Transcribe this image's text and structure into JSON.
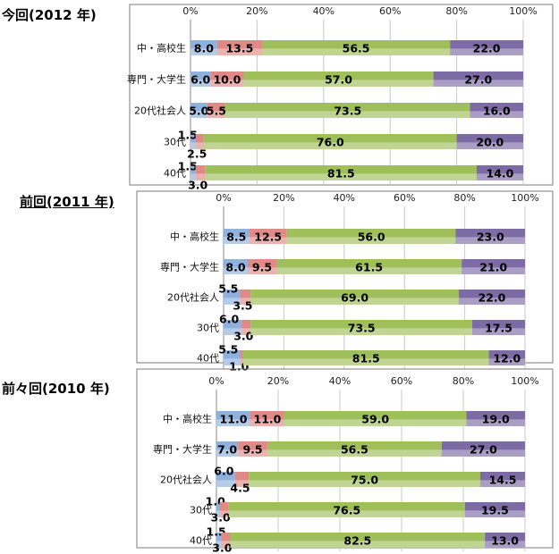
{
  "colors": {
    "seg1": "#8eb1dd",
    "seg2": "#df8a86",
    "seg3": "#9fbf5a",
    "seg4": "#7d6ba5",
    "frame": "#7a7a7a"
  },
  "chart_data": [
    {
      "type": "bar",
      "orientation": "horizontal-stacked-100",
      "title": "今回(2012 年)",
      "categories": [
        "中・高校生",
        "専門・大学生",
        "20代社会人",
        "30代",
        "40代"
      ],
      "xlim": [
        0,
        100
      ],
      "xticks": [
        "0%",
        "20%",
        "40%",
        "60%",
        "80%",
        "100%"
      ],
      "series": [
        {
          "values": [
            8.0,
            6.0,
            5.0,
            1.5,
            1.5
          ]
        },
        {
          "values": [
            13.5,
            10.0,
            5.5,
            2.5,
            3.0
          ]
        },
        {
          "values": [
            56.5,
            57.0,
            73.5,
            76.0,
            81.5
          ]
        },
        {
          "values": [
            22.0,
            27.0,
            16.0,
            20.0,
            14.0
          ]
        }
      ],
      "labels": [
        [
          "8.0",
          "13.5",
          "56.5",
          "22.0"
        ],
        [
          "6.0",
          "10.0",
          "57.0",
          "27.0"
        ],
        [
          "5.0",
          "5.5",
          "73.5",
          "16.0"
        ],
        [
          "1.5",
          "2.5",
          "76.0",
          "20.0"
        ],
        [
          "1.5",
          "3.0",
          "81.5",
          "14.0"
        ]
      ]
    },
    {
      "type": "bar",
      "orientation": "horizontal-stacked-100",
      "title": "前回(2011 年)",
      "categories": [
        "中・高校生",
        "専門・大学生",
        "20代社会人",
        "30代",
        "40代"
      ],
      "xlim": [
        0,
        100
      ],
      "xticks": [
        "0%",
        "20%",
        "40%",
        "60%",
        "80%",
        "100%"
      ],
      "series": [
        {
          "values": [
            8.5,
            8.0,
            5.5,
            6.0,
            5.5
          ]
        },
        {
          "values": [
            12.5,
            9.5,
            3.5,
            3.0,
            1.0
          ]
        },
        {
          "values": [
            56.0,
            61.5,
            69.0,
            73.5,
            81.5
          ]
        },
        {
          "values": [
            23.0,
            21.0,
            22.0,
            17.5,
            12.0
          ]
        }
      ],
      "labels": [
        [
          "8.5",
          "12.5",
          "56.0",
          "23.0"
        ],
        [
          "8.0",
          "9.5",
          "61.5",
          "21.0"
        ],
        [
          "5.5",
          "3.5",
          "69.0",
          "22.0"
        ],
        [
          "6.0",
          "3.0",
          "73.5",
          "17.5"
        ],
        [
          "5.5",
          "1.0",
          "81.5",
          "12.0"
        ]
      ]
    },
    {
      "type": "bar",
      "orientation": "horizontal-stacked-100",
      "title": "前々回(2010 年)",
      "categories": [
        "中・高校生",
        "専門・大学生",
        "20代社会人",
        "30代",
        "40代"
      ],
      "xlim": [
        0,
        100
      ],
      "xticks": [
        "0%",
        "20%",
        "40%",
        "60%",
        "80%",
        "100%"
      ],
      "series": [
        {
          "values": [
            11.0,
            7.0,
            6.0,
            1.0,
            1.5
          ]
        },
        {
          "values": [
            11.0,
            9.5,
            4.5,
            3.0,
            3.0
          ]
        },
        {
          "values": [
            59.0,
            56.5,
            75.0,
            76.5,
            82.5
          ]
        },
        {
          "values": [
            19.0,
            27.0,
            14.5,
            19.5,
            13.0
          ]
        }
      ],
      "labels": [
        [
          "11.0",
          "11.0",
          "59.0",
          "19.0"
        ],
        [
          "7.0",
          "9.5",
          "56.5",
          "27.0"
        ],
        [
          "6.0",
          "4.5",
          "75.0",
          "14.5"
        ],
        [
          "1.0",
          "3.0",
          "76.5",
          "19.5"
        ],
        [
          "1.5",
          "3.0",
          "82.5",
          "13.0"
        ]
      ]
    }
  ]
}
